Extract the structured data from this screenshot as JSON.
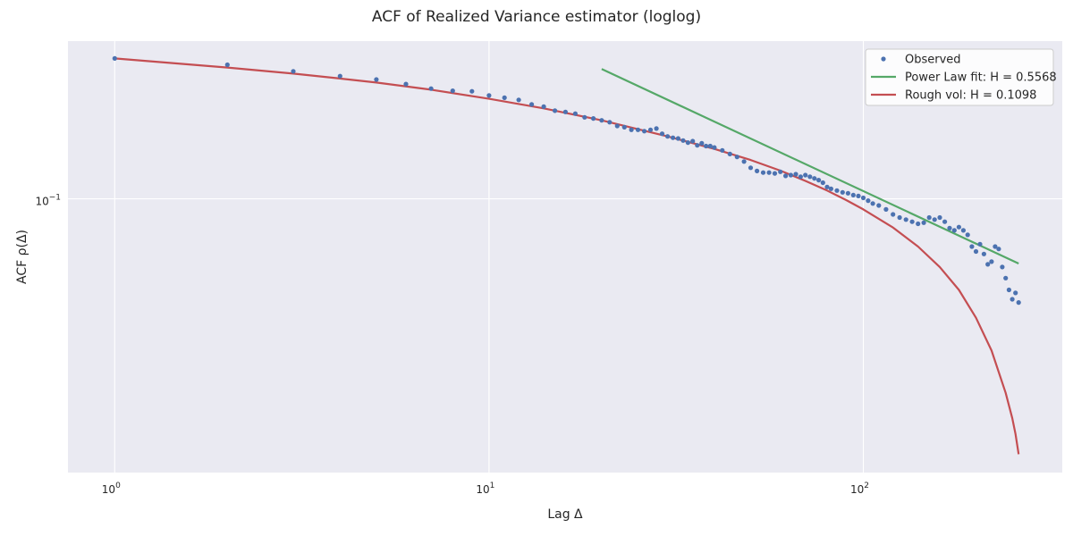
{
  "chart_data": {
    "type": "line",
    "title": "ACF of Realized Variance estimator (loglog)",
    "xlabel": "Lag Δ",
    "ylabel": "ACF ρ(Δ)",
    "xscale": "log",
    "yscale": "log",
    "xlim": [
      0.75,
      340
    ],
    "ylim": [
      0.0232,
      0.232
    ],
    "grid": true,
    "legend_position": "top-right",
    "x_ticks": [
      {
        "value": 1,
        "base": "10",
        "exp": "0"
      },
      {
        "value": 10,
        "base": "10",
        "exp": "1"
      },
      {
        "value": 100,
        "base": "10",
        "exp": "2"
      }
    ],
    "y_ticks": [
      {
        "value": 0.1,
        "base": "10",
        "exp": "−1"
      }
    ],
    "colors": {
      "background": "#eaeaf2",
      "grid": "#ffffff",
      "observed": "#4c72b0",
      "power_law": "#55a868",
      "rough_vol": "#c44e52"
    },
    "series": [
      {
        "name": "Observed",
        "style": "markers",
        "points": [
          [
            1,
            0.2115
          ],
          [
            2,
            0.2045
          ],
          [
            3,
            0.1975
          ],
          [
            4,
            0.1925
          ],
          [
            5,
            0.189
          ],
          [
            6,
            0.1845
          ],
          [
            7,
            0.18
          ],
          [
            8,
            0.178
          ],
          [
            9,
            0.1775
          ],
          [
            10,
            0.1735
          ],
          [
            11,
            0.1715
          ],
          [
            12,
            0.1695
          ],
          [
            13,
            0.1655
          ],
          [
            14,
            0.1635
          ],
          [
            15,
            0.16
          ],
          [
            16,
            0.159
          ],
          [
            17,
            0.1575
          ],
          [
            18,
            0.1545
          ],
          [
            19,
            0.1535
          ],
          [
            20,
            0.152
          ],
          [
            21,
            0.1505
          ],
          [
            22,
            0.1475
          ],
          [
            23,
            0.1465
          ],
          [
            24,
            0.1445
          ],
          [
            25,
            0.1445
          ],
          [
            26,
            0.1435
          ],
          [
            27,
            0.1445
          ],
          [
            28,
            0.1455
          ],
          [
            29,
            0.1415
          ],
          [
            30,
            0.1395
          ],
          [
            31,
            0.1385
          ],
          [
            32,
            0.138
          ],
          [
            33,
            0.1365
          ],
          [
            34,
            0.135
          ],
          [
            35,
            0.136
          ],
          [
            36,
            0.133
          ],
          [
            37,
            0.1345
          ],
          [
            38,
            0.1325
          ],
          [
            39,
            0.1325
          ],
          [
            40,
            0.1315
          ],
          [
            42,
            0.1295
          ],
          [
            44,
            0.127
          ],
          [
            46,
            0.125
          ],
          [
            48,
            0.122
          ],
          [
            50,
            0.118
          ],
          [
            52,
            0.116
          ],
          [
            54,
            0.115
          ],
          [
            56,
            0.115
          ],
          [
            58,
            0.1145
          ],
          [
            60,
            0.1155
          ],
          [
            62,
            0.113
          ],
          [
            64,
            0.1135
          ],
          [
            66,
            0.114
          ],
          [
            68,
            0.1125
          ],
          [
            70,
            0.1135
          ],
          [
            72,
            0.1125
          ],
          [
            74,
            0.1115
          ],
          [
            76,
            0.1105
          ],
          [
            78,
            0.109
          ],
          [
            80,
            0.1065
          ],
          [
            82,
            0.1055
          ],
          [
            85,
            0.1045
          ],
          [
            88,
            0.1035
          ],
          [
            91,
            0.103
          ],
          [
            94,
            0.102
          ],
          [
            97,
            0.1015
          ],
          [
            100,
            0.1005
          ],
          [
            103,
            0.099
          ],
          [
            106,
            0.0975
          ],
          [
            110,
            0.0965
          ],
          [
            115,
            0.0945
          ],
          [
            120,
            0.092
          ],
          [
            125,
            0.0905
          ],
          [
            130,
            0.0895
          ],
          [
            135,
            0.0885
          ],
          [
            140,
            0.0875
          ],
          [
            145,
            0.088
          ],
          [
            150,
            0.0905
          ],
          [
            155,
            0.0895
          ],
          [
            160,
            0.0905
          ],
          [
            165,
            0.0885
          ],
          [
            170,
            0.0855
          ],
          [
            175,
            0.0845
          ],
          [
            180,
            0.086
          ],
          [
            185,
            0.0845
          ],
          [
            190,
            0.0825
          ],
          [
            195,
            0.0775
          ],
          [
            200,
            0.0755
          ],
          [
            205,
            0.0785
          ],
          [
            210,
            0.0745
          ],
          [
            215,
            0.0705
          ],
          [
            220,
            0.0715
          ],
          [
            225,
            0.0775
          ],
          [
            230,
            0.0765
          ],
          [
            235,
            0.0695
          ],
          [
            240,
            0.0655
          ],
          [
            245,
            0.0615
          ],
          [
            250,
            0.0585
          ],
          [
            255,
            0.0605
          ],
          [
            260,
            0.0575
          ]
        ]
      },
      {
        "name": "Power Law fit: H = 0.5568",
        "style": "line",
        "points": [
          [
            20,
            0.1998
          ],
          [
            260,
            0.0708
          ]
        ]
      },
      {
        "name": "Rough vol: H = 0.1098",
        "style": "line",
        "points": [
          [
            1,
            0.2115
          ],
          [
            2,
            0.2015
          ],
          [
            3,
            0.195
          ],
          [
            4,
            0.19
          ],
          [
            5,
            0.186
          ],
          [
            7,
            0.179
          ],
          [
            10,
            0.1705
          ],
          [
            14,
            0.162
          ],
          [
            20,
            0.152
          ],
          [
            30,
            0.1395
          ],
          [
            40,
            0.1305
          ],
          [
            50,
            0.123
          ],
          [
            60,
            0.1162
          ],
          [
            70,
            0.11
          ],
          [
            80,
            0.1045
          ],
          [
            90,
            0.0993
          ],
          [
            100,
            0.0945
          ],
          [
            120,
            0.0858
          ],
          [
            140,
            0.0775
          ],
          [
            160,
            0.0695
          ],
          [
            180,
            0.0615
          ],
          [
            200,
            0.053
          ],
          [
            220,
            0.0445
          ],
          [
            240,
            0.0355
          ],
          [
            250,
            0.031
          ],
          [
            255,
            0.0285
          ],
          [
            260,
            0.0256
          ]
        ]
      }
    ]
  }
}
